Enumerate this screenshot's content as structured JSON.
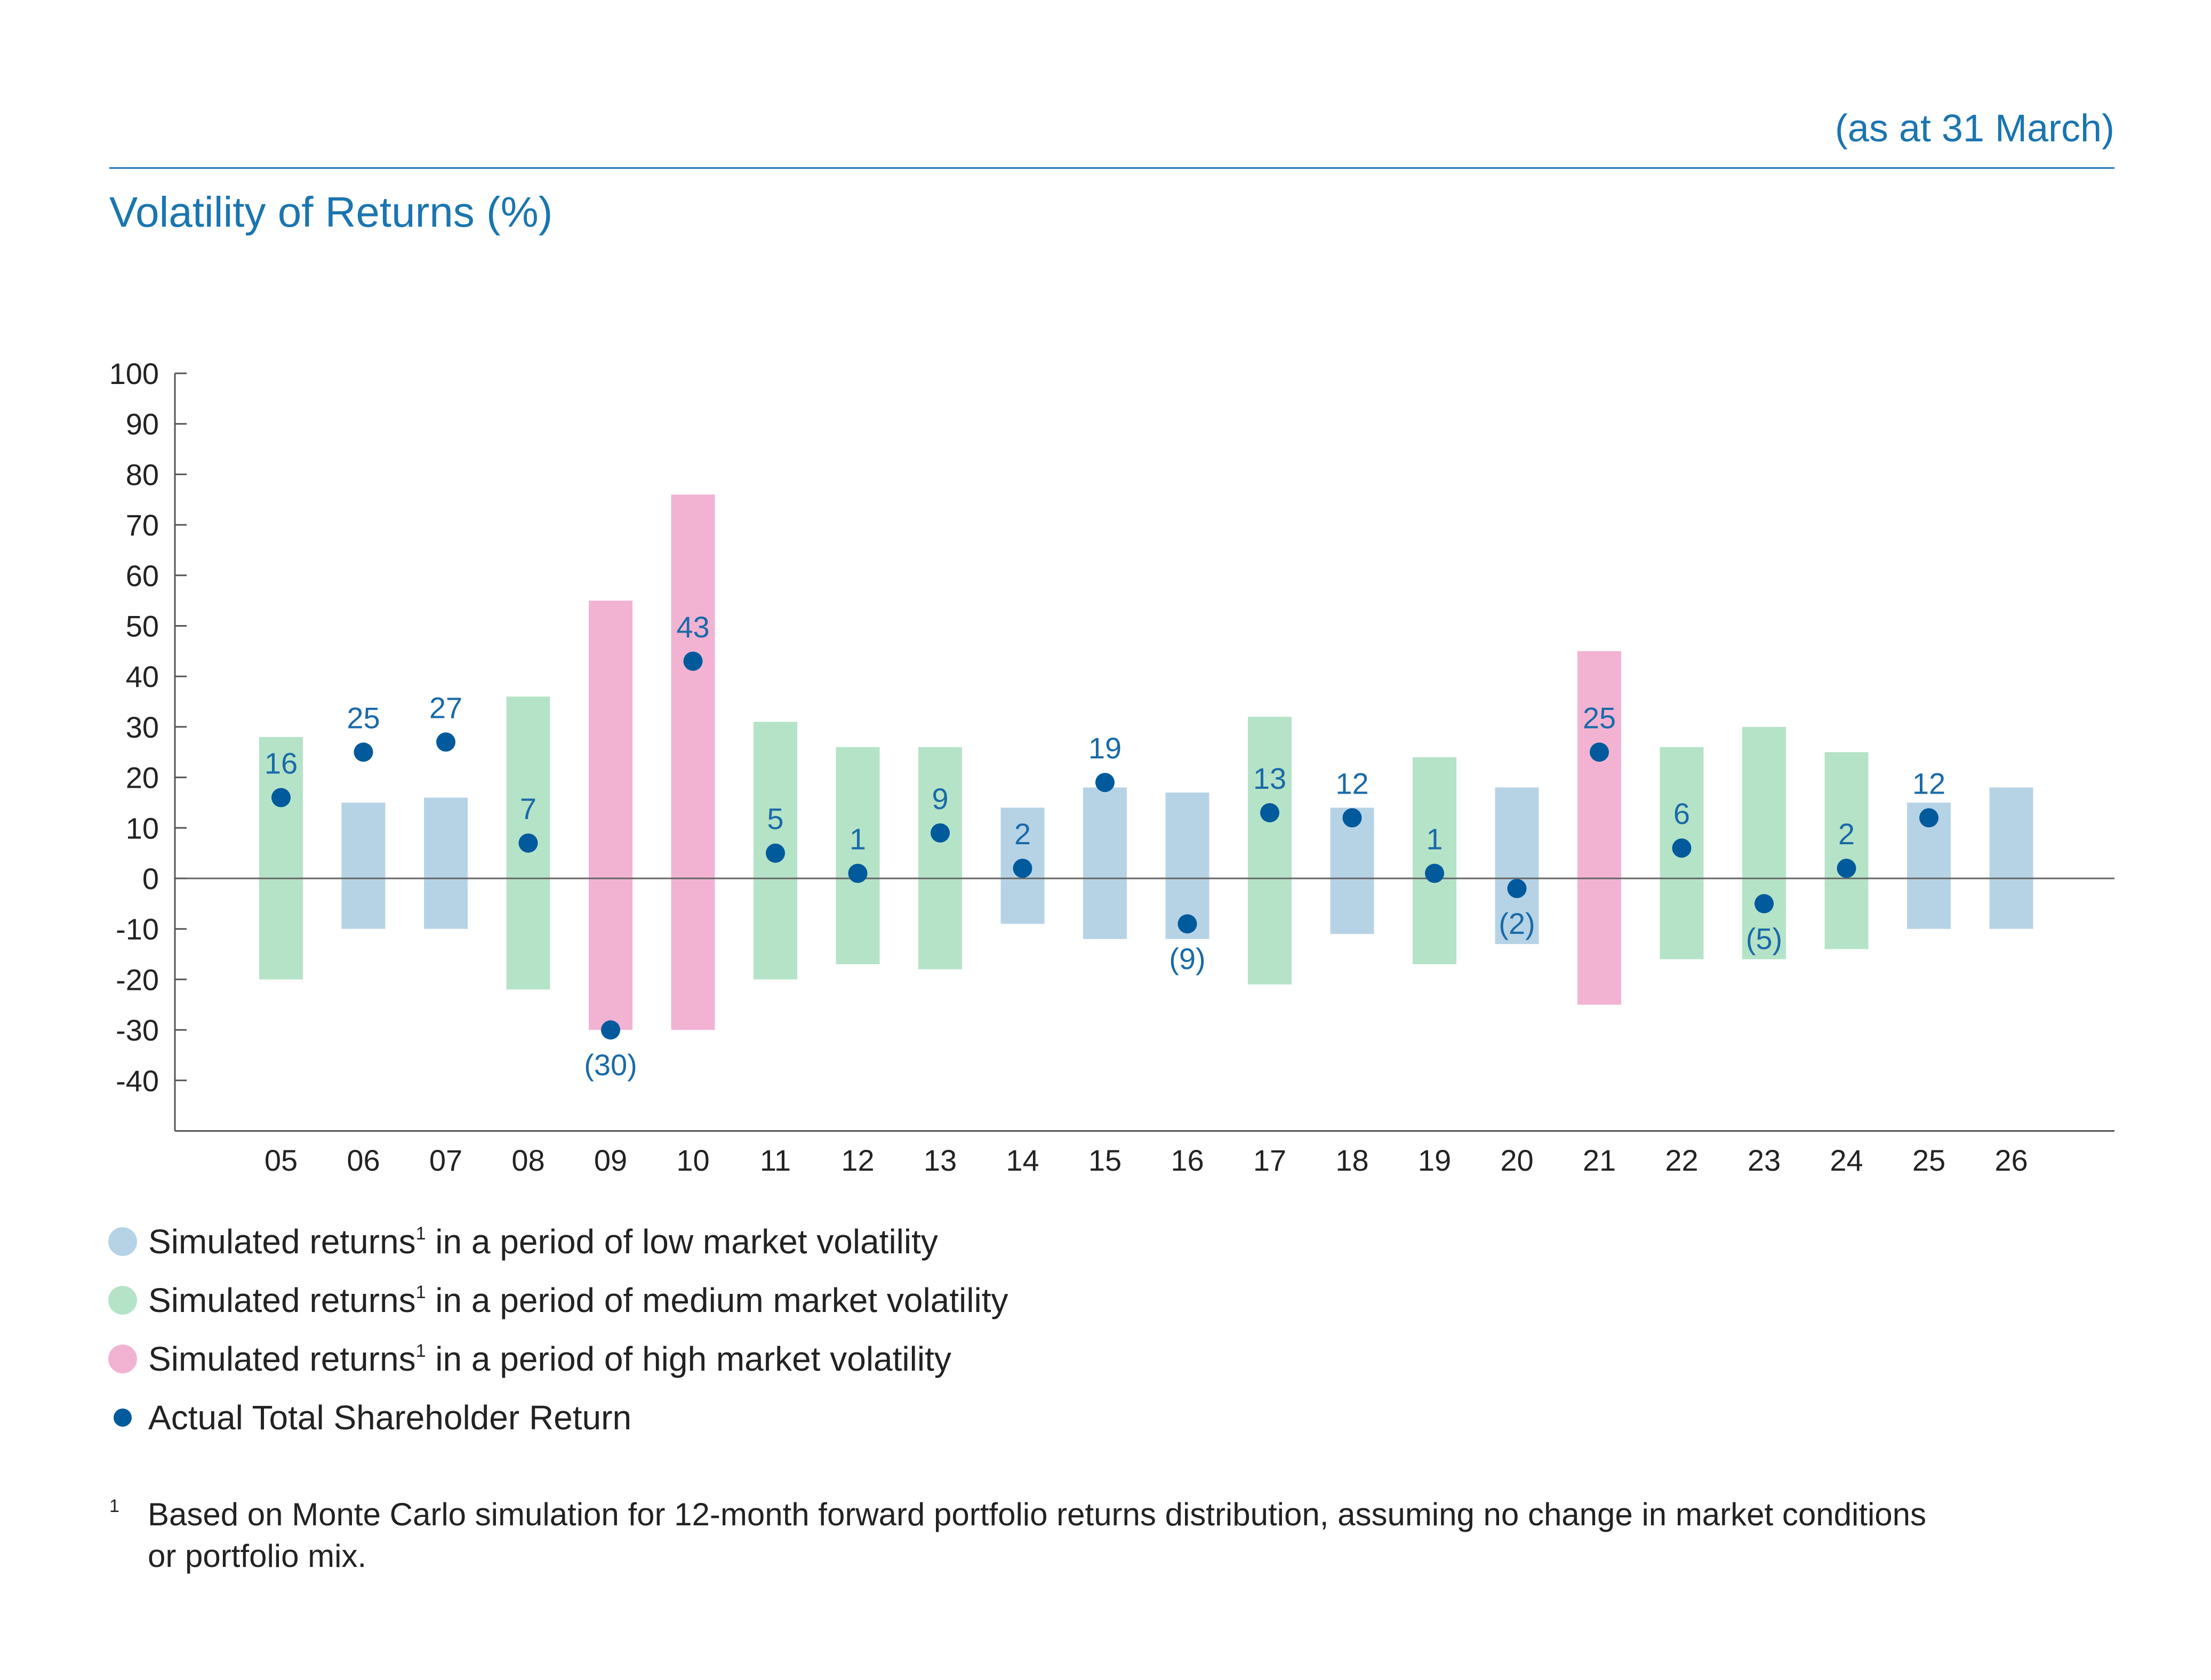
{
  "header": {
    "subtitle": "(as at 31 March)",
    "title": "Volatility of Returns (%)"
  },
  "colors": {
    "low": "#b6d3e6",
    "medium": "#b5e3c8",
    "high": "#f2b3d3",
    "point": "#005a9c",
    "accent": "#1a75b0"
  },
  "chart_data": {
    "type": "bar",
    "title": "Volatility of Returns (%)",
    "subtitle": "(as at 31 March)",
    "xlabel": "",
    "ylabel": "",
    "ylim": [
      -50,
      100
    ],
    "yticks": [
      100,
      90,
      80,
      70,
      60,
      50,
      40,
      30,
      20,
      10,
      0,
      -10,
      -20,
      -30,
      -40
    ],
    "grid": false,
    "categories": [
      "05",
      "06",
      "07",
      "08",
      "09",
      "10",
      "11",
      "12",
      "13",
      "14",
      "15",
      "16",
      "17",
      "18",
      "19",
      "20",
      "21",
      "22",
      "23",
      "24",
      "25",
      "26"
    ],
    "ranges": [
      {
        "low": -20,
        "high": 28,
        "volatility": "medium"
      },
      {
        "low": -10,
        "high": 15,
        "volatility": "low"
      },
      {
        "low": -10,
        "high": 16,
        "volatility": "low"
      },
      {
        "low": -22,
        "high": 36,
        "volatility": "medium"
      },
      {
        "low": -30,
        "high": 55,
        "volatility": "high"
      },
      {
        "low": -30,
        "high": 76,
        "volatility": "high"
      },
      {
        "low": -20,
        "high": 31,
        "volatility": "medium"
      },
      {
        "low": -17,
        "high": 26,
        "volatility": "medium"
      },
      {
        "low": -18,
        "high": 26,
        "volatility": "medium"
      },
      {
        "low": -9,
        "high": 14,
        "volatility": "low"
      },
      {
        "low": -12,
        "high": 18,
        "volatility": "low"
      },
      {
        "low": -12,
        "high": 17,
        "volatility": "low"
      },
      {
        "low": -21,
        "high": 32,
        "volatility": "medium"
      },
      {
        "low": -11,
        "high": 14,
        "volatility": "low"
      },
      {
        "low": -17,
        "high": 24,
        "volatility": "medium"
      },
      {
        "low": -13,
        "high": 18,
        "volatility": "low"
      },
      {
        "low": -25,
        "high": 45,
        "volatility": "high"
      },
      {
        "low": -16,
        "high": 26,
        "volatility": "medium"
      },
      {
        "low": -16,
        "high": 30,
        "volatility": "medium"
      },
      {
        "low": -14,
        "high": 25,
        "volatility": "medium"
      },
      {
        "low": -10,
        "high": 15,
        "volatility": "low"
      },
      {
        "low": -10,
        "high": 18,
        "volatility": "low"
      }
    ],
    "tsr": [
      16,
      25,
      27,
      7,
      -30,
      43,
      5,
      1,
      9,
      2,
      19,
      -9,
      13,
      12,
      1,
      -2,
      25,
      6,
      -5,
      2,
      12,
      null
    ],
    "tsr_labels": [
      "16",
      "25",
      "27",
      "7",
      "(30)",
      "43",
      "5",
      "1",
      "9",
      "2",
      "19",
      "(9)",
      "13",
      "12",
      "1",
      "(2)",
      "25",
      "6",
      "(5)",
      "2",
      "12",
      ""
    ],
    "legend": [
      {
        "key": "low",
        "text": "Simulated returns",
        "sup": "1",
        "suffix": " in a period of low market volatility",
        "marker": "square"
      },
      {
        "key": "medium",
        "text": "Simulated returns",
        "sup": "1",
        "suffix": " in a period of medium market volatility",
        "marker": "square"
      },
      {
        "key": "high",
        "text": "Simulated returns",
        "sup": "1",
        "suffix": " in a period of high market volatility",
        "marker": "square"
      },
      {
        "key": "point",
        "text": "Actual Total Shareholder Return",
        "sup": "",
        "suffix": "",
        "marker": "dot"
      }
    ],
    "legend_position": "bottom-left"
  },
  "footnote": {
    "mark": "1",
    "line1": "Based on Monte Carlo simulation for 12-month forward portfolio returns distribution, assuming no change in market conditions",
    "line2": "or portfolio mix."
  }
}
